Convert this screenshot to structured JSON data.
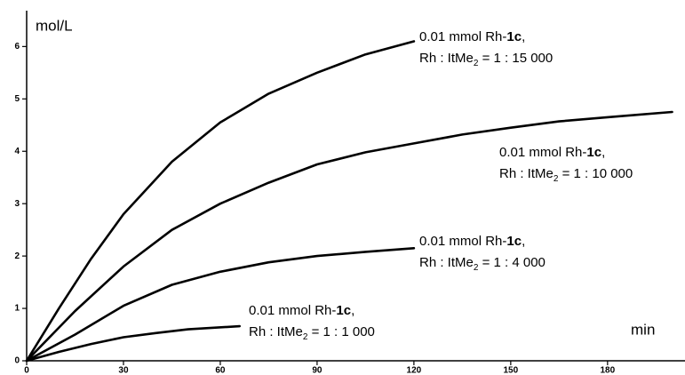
{
  "chart_data": {
    "type": "line",
    "y_label": "mol/L",
    "x_label": "min",
    "xlim": [
      0,
      204
    ],
    "ylim": [
      0,
      6.6
    ],
    "xticks": [
      0,
      30,
      60,
      90,
      120,
      150,
      180
    ],
    "yticks": [
      0,
      1,
      2,
      3,
      4,
      5,
      6
    ],
    "series": [
      {
        "color": "#000000",
        "x": [
          0,
          10,
          20,
          30,
          45,
          60,
          75,
          90,
          105,
          120
        ],
        "values": [
          0,
          1.0,
          1.95,
          2.8,
          3.8,
          4.55,
          5.1,
          5.5,
          5.85,
          6.1
        ]
      },
      {
        "color": "#000000",
        "x": [
          0,
          15,
          30,
          45,
          60,
          75,
          90,
          105,
          120,
          135,
          150,
          165,
          180,
          200
        ],
        "values": [
          0,
          0.95,
          1.8,
          2.5,
          3.0,
          3.4,
          3.75,
          3.98,
          4.15,
          4.32,
          4.45,
          4.57,
          4.65,
          4.75
        ]
      },
      {
        "color": "#000000",
        "x": [
          0,
          15,
          30,
          45,
          60,
          75,
          90,
          105,
          120
        ],
        "values": [
          0,
          0.5,
          1.05,
          1.45,
          1.7,
          1.88,
          2.0,
          2.08,
          2.15
        ]
      },
      {
        "color": "#000000",
        "x": [
          0,
          10,
          20,
          30,
          40,
          50,
          66
        ],
        "values": [
          0,
          0.17,
          0.32,
          0.45,
          0.53,
          0.6,
          0.66
        ]
      }
    ],
    "annotations": [
      {
        "line1": [
          "0.01 mmol Rh-",
          "1c",
          ","
        ],
        "line2": [
          "Rh : ItMe",
          "2",
          " = 1 : 15 000"
        ]
      },
      {
        "line1": [
          "0.01 mmol Rh-",
          "1c",
          ","
        ],
        "line2": [
          "Rh : ItMe",
          "2",
          " = 1 : 10 000"
        ]
      },
      {
        "line1": [
          "0.01 mmol Rh-",
          "1c",
          ","
        ],
        "line2": [
          "Rh : ItMe",
          "2",
          " = 1 : 4 000"
        ]
      },
      {
        "line1": [
          "0.01 mmol Rh-",
          "1c",
          ","
        ],
        "line2": [
          "Rh : ItMe",
          "2",
          " = 1 : 1 000"
        ]
      }
    ]
  }
}
